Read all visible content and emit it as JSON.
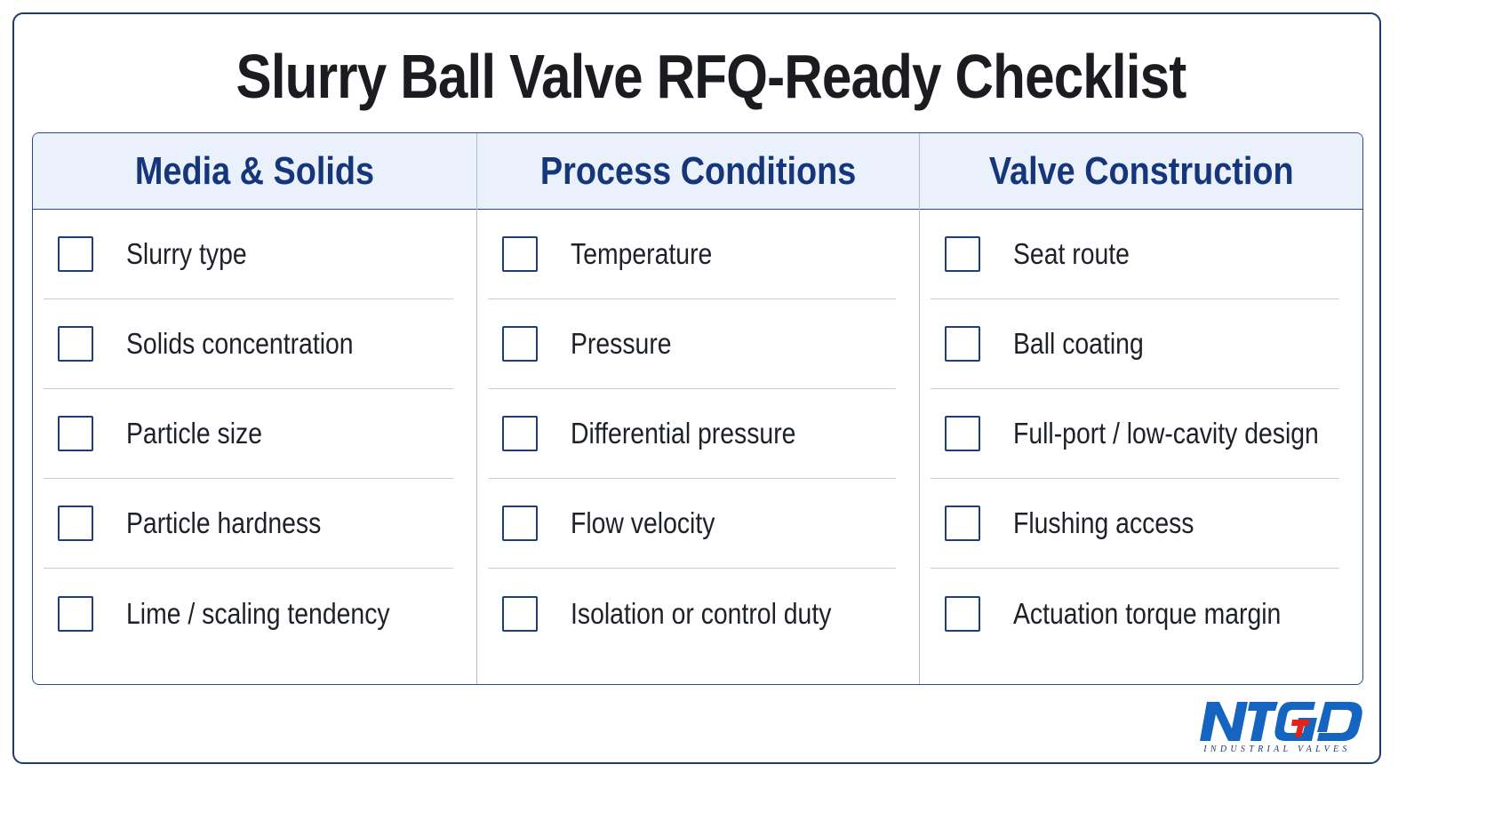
{
  "title": "Slurry Ball Valve RFQ-Ready Checklist",
  "colors": {
    "frame": "#1f3a6b",
    "header_bg": "#eaf1fb",
    "header_text": "#15367a",
    "checkbox_border": "#1d3d7c",
    "logo_blue": "#1565c0",
    "logo_red": "#e2231a"
  },
  "columns": [
    {
      "header": "Media & Solids",
      "items": [
        {
          "label": "Slurry type",
          "checked": false
        },
        {
          "label": "Solids concentration",
          "checked": false
        },
        {
          "label": "Particle size",
          "checked": false
        },
        {
          "label": "Particle hardness",
          "checked": false
        },
        {
          "label": "Lime / scaling tendency",
          "checked": false
        }
      ]
    },
    {
      "header": "Process Conditions",
      "items": [
        {
          "label": "Temperature",
          "checked": false
        },
        {
          "label": "Pressure",
          "checked": false
        },
        {
          "label": "Differential pressure",
          "checked": false
        },
        {
          "label": "Flow velocity",
          "checked": false
        },
        {
          "label": "Isolation or control duty",
          "checked": false
        }
      ]
    },
    {
      "header": "Valve Construction",
      "items": [
        {
          "label": "Seat route",
          "checked": false
        },
        {
          "label": "Ball coating",
          "checked": false
        },
        {
          "label": "Full-port / low-cavity design",
          "checked": false
        },
        {
          "label": "Flushing access",
          "checked": false
        },
        {
          "label": "Actuation torque margin",
          "checked": false
        }
      ]
    }
  ],
  "logo": {
    "mark": "NTGD",
    "subtitle": "INDUSTRIAL VALVES"
  }
}
